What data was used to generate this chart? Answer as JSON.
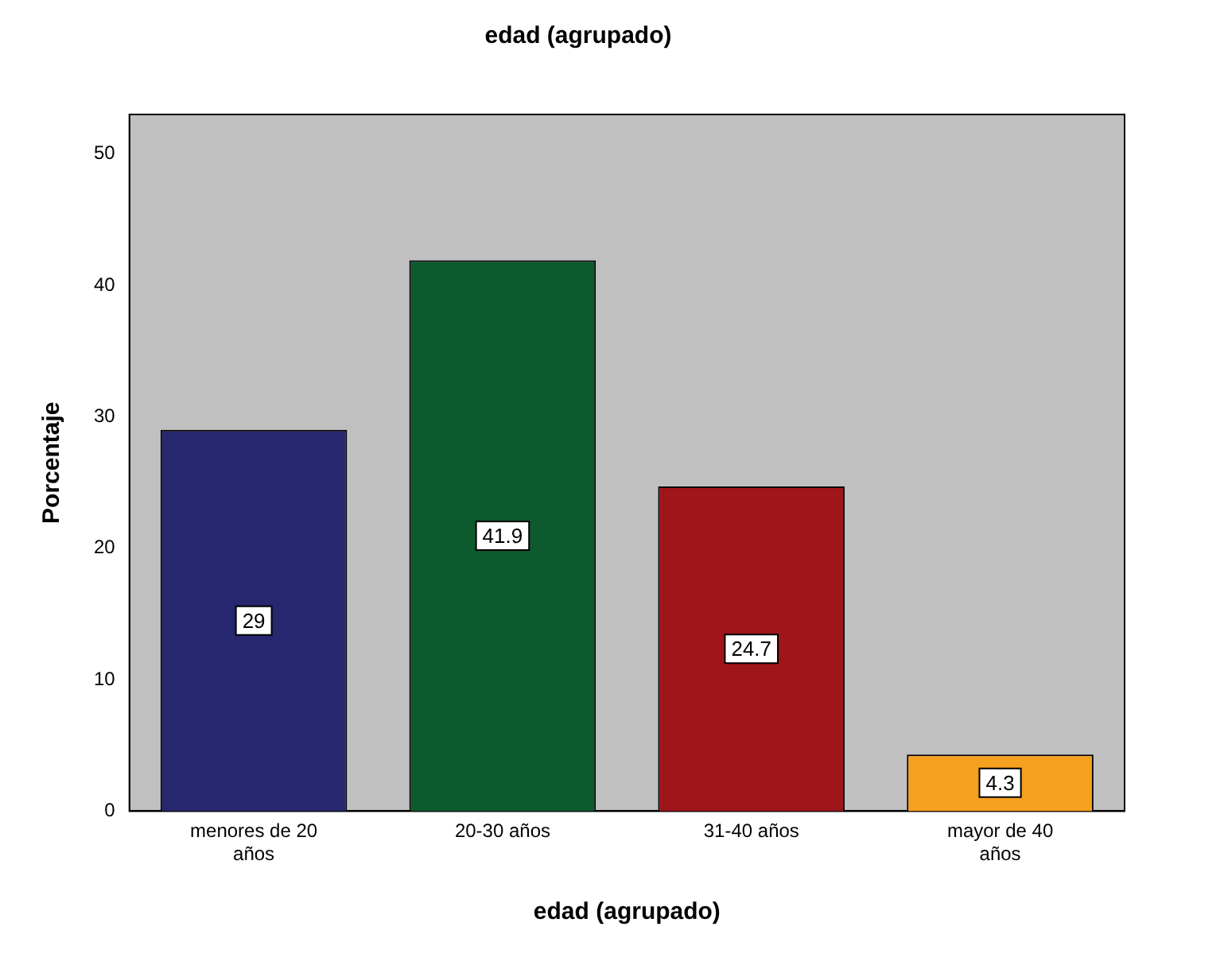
{
  "chart_data": {
    "type": "bar",
    "title": "edad (agrupado)",
    "xlabel": "edad (agrupado)",
    "ylabel": "Porcentaje",
    "categories": [
      "menores de 20 años",
      "20-30 años",
      "31-40 años",
      "mayor de 40 años"
    ],
    "values": [
      29,
      41.9,
      24.7,
      4.3
    ],
    "colors": [
      "#27276f",
      "#0d5a2e",
      "#a01519",
      "#f5a01f"
    ],
    "ylim": [
      0,
      53
    ],
    "yticks": [
      0,
      10,
      20,
      30,
      40,
      50
    ],
    "grid": false,
    "legend": false,
    "data_labels": true
  }
}
